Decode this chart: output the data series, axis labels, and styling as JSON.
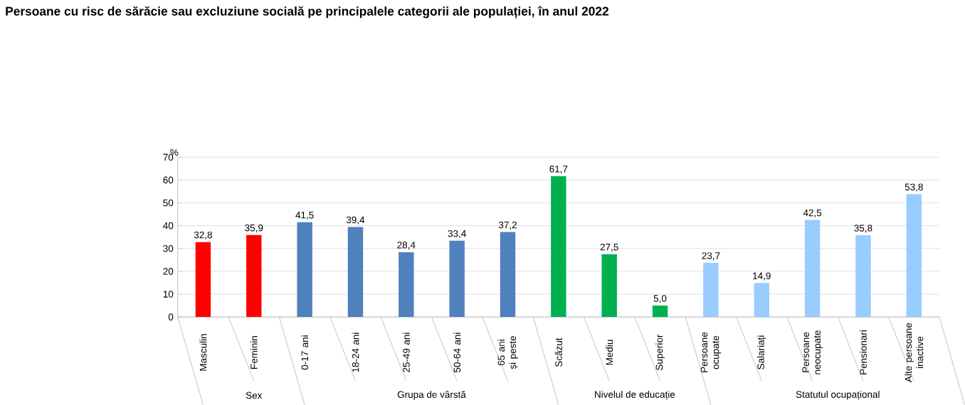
{
  "chart_data": {
    "type": "bar",
    "title": "Persoane cu risc de sărăcie sau excluziune socială pe principalele categorii ale populației, în anul 2022",
    "ylabel": "%",
    "categories": [
      "Masculin",
      "Feminin",
      "0-17 ani",
      "18-24 ani",
      "25-49 ani",
      "50-64 ani",
      "65 ani și peste",
      "Scăzut",
      "Mediu",
      "Superior",
      "Persoane ocupate",
      "Salariați",
      "Persoane neocupate",
      "Pensionari",
      "Alte persoane inactive"
    ],
    "values": [
      32.8,
      35.9,
      41.5,
      39.4,
      28.4,
      33.4,
      37.2,
      61.7,
      27.5,
      5.0,
      23.7,
      14.9,
      42.5,
      35.8,
      53.8
    ],
    "value_labels": [
      "32,8",
      "35,9",
      "41,5",
      "39,4",
      "28,4",
      "33,4",
      "37,2",
      "61,7",
      "27,5",
      "5,0",
      "23,7",
      "14,9",
      "42,5",
      "35,8",
      "53,8"
    ],
    "colors": [
      "#ff0000",
      "#ff0000",
      "#4f81bd",
      "#4f81bd",
      "#4f81bd",
      "#4f81bd",
      "#4f81bd",
      "#00b050",
      "#00b050",
      "#00b050",
      "#99ccff",
      "#99ccff",
      "#99ccff",
      "#99ccff",
      "#99ccff"
    ],
    "annotations": [
      "Sex",
      "Grupa de vârstă",
      "Nivelul de educație",
      "Statutul ocupațional"
    ],
    "ylim": [
      0,
      70
    ],
    "yticks": [
      0,
      10,
      20,
      30,
      40,
      50,
      60,
      70
    ],
    "grid": "y"
  }
}
